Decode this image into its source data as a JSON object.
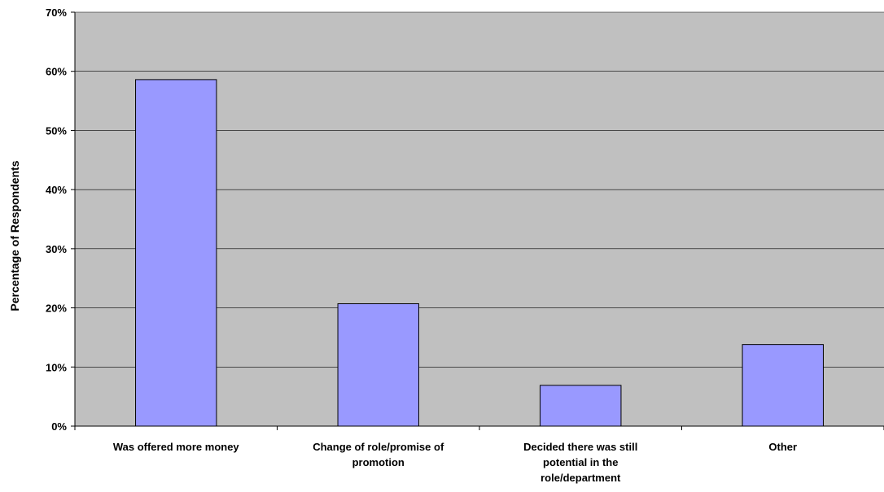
{
  "chart_data": {
    "type": "bar",
    "title": "",
    "xlabel": "",
    "ylabel": "Percentage of Respondents",
    "ylim": [
      0,
      0.7
    ],
    "yticks": [
      "0%",
      "10%",
      "20%",
      "30%",
      "40%",
      "50%",
      "60%",
      "70%"
    ],
    "categories": [
      [
        "Was offered more money"
      ],
      [
        "Change of role/promise of",
        "promotion"
      ],
      [
        "Decided there was still",
        "potential in the",
        "role/department"
      ],
      [
        "Other"
      ]
    ],
    "values": [
      0.586,
      0.207,
      0.069,
      0.138
    ],
    "grid": true,
    "legend": "none",
    "colors": {
      "bar_fill": "#9999ff",
      "bar_stroke": "#000000",
      "plot_background": "#c0c0c0",
      "gridline": "#000000"
    }
  }
}
